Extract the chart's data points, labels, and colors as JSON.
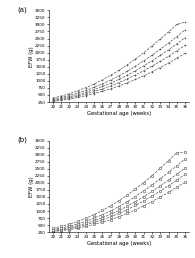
{
  "weeks": [
    20,
    21,
    22,
    23,
    24,
    25,
    26,
    27,
    28,
    29,
    30,
    31,
    32,
    33,
    34,
    35,
    36
  ],
  "panel_a": {
    "label": "(a)",
    "p5": [
      270,
      310,
      355,
      410,
      475,
      550,
      630,
      720,
      820,
      930,
      1050,
      1180,
      1320,
      1470,
      1630,
      1800,
      1980
    ],
    "p25": [
      295,
      340,
      395,
      460,
      535,
      620,
      715,
      820,
      940,
      1070,
      1210,
      1360,
      1520,
      1690,
      1870,
      2060,
      2260
    ],
    "p50": [
      320,
      370,
      435,
      510,
      595,
      690,
      800,
      920,
      1055,
      1200,
      1360,
      1530,
      1710,
      1900,
      2100,
      2310,
      2530
    ],
    "p75": [
      350,
      410,
      480,
      565,
      660,
      770,
      895,
      1030,
      1180,
      1340,
      1520,
      1710,
      1910,
      2120,
      2340,
      2570,
      2810
    ],
    "p95": [
      390,
      460,
      545,
      645,
      760,
      890,
      1035,
      1195,
      1375,
      1565,
      1775,
      2000,
      2235,
      2480,
      2735,
      3000,
      3080
    ]
  },
  "panel_b": {
    "label": "(b)",
    "p5": [
      270,
      305,
      345,
      395,
      455,
      525,
      605,
      695,
      800,
      915,
      1045,
      1185,
      1335,
      1495,
      1665,
      1840,
      2025
    ],
    "p25": [
      290,
      330,
      380,
      440,
      510,
      595,
      690,
      795,
      915,
      1050,
      1200,
      1360,
      1530,
      1710,
      1900,
      2095,
      2300
    ],
    "p50": [
      315,
      360,
      415,
      485,
      565,
      660,
      765,
      885,
      1020,
      1170,
      1335,
      1510,
      1695,
      1890,
      2095,
      2305,
      2525
    ],
    "p75": [
      345,
      400,
      465,
      545,
      640,
      750,
      870,
      1005,
      1160,
      1330,
      1515,
      1715,
      1925,
      2145,
      2370,
      2605,
      2845
    ],
    "p95": [
      390,
      455,
      535,
      630,
      745,
      875,
      1020,
      1185,
      1365,
      1565,
      1780,
      2010,
      2255,
      2515,
      2785,
      3070,
      3090
    ]
  },
  "ylim": [
    250,
    3500
  ],
  "yticks": [
    250,
    500,
    750,
    1000,
    1250,
    1500,
    1750,
    2000,
    2250,
    2500,
    2750,
    3000,
    3250,
    3500
  ],
  "xlabel": "Gestational age (weeks)",
  "ylabel": "EFW (g)",
  "line_color": "#555555",
  "markersize_a": 1.2,
  "markersize_b": 1.8,
  "linewidth": 0.5,
  "linestyle": "--"
}
